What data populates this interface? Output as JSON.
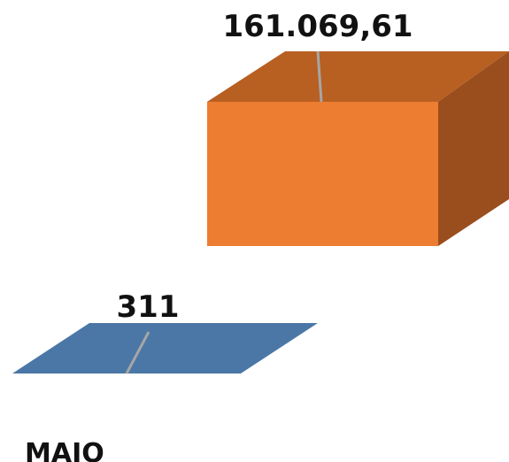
{
  "chart_data": {
    "type": "bar",
    "categories": [
      "MAIO"
    ],
    "series": [
      {
        "values": [
          311
        ],
        "value_labels": [
          "311"
        ],
        "color": "#4A77A6",
        "top_color": "#4A77A6",
        "side_color": "#3D6791"
      },
      {
        "values": [
          161069.61
        ],
        "value_labels": [
          "161.069,61"
        ],
        "color": "#ED7D31",
        "top_color": "#B85F22",
        "side_color": "#9A4E1D"
      }
    ],
    "leader_line_color": "#A6A6A6",
    "grid": false,
    "legend": "none"
  }
}
